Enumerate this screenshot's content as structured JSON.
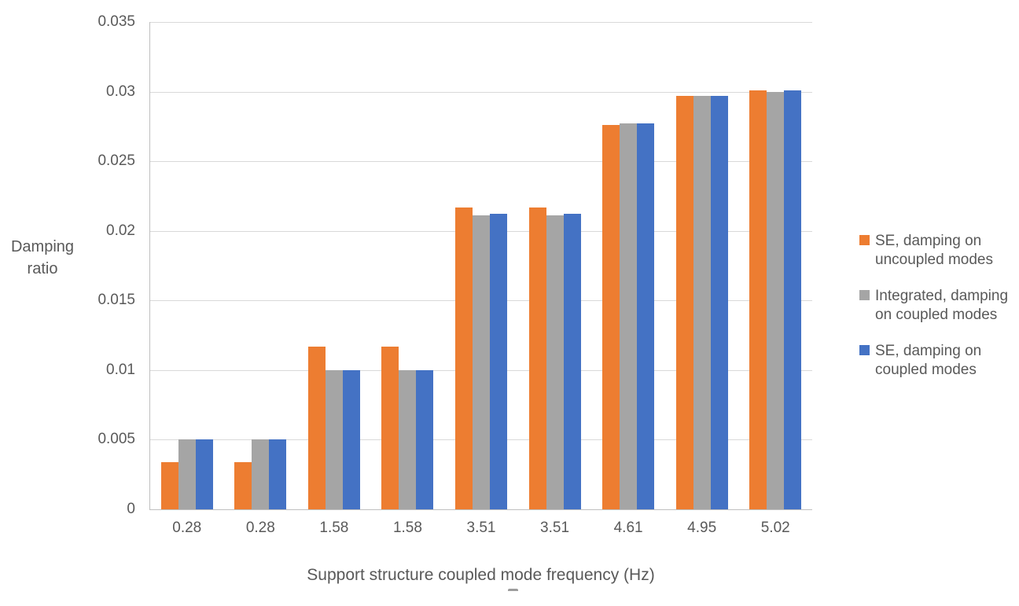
{
  "chart_data": {
    "type": "bar",
    "title": "",
    "xlabel": "Support structure coupled mode frequency (Hz)",
    "ylabel": "Damping ratio",
    "ylabel_lines": [
      "Damping",
      "ratio"
    ],
    "categories": [
      "0.28",
      "0.28",
      "1.58",
      "1.58",
      "3.51",
      "3.51",
      "4.61",
      "4.95",
      "5.02"
    ],
    "series": [
      {
        "name": "SE, damping on uncoupled modes",
        "name_lines": [
          "SE, damping on",
          "uncoupled modes"
        ],
        "color": "#ED7D31",
        "values": [
          0.0034,
          0.0034,
          0.0117,
          0.0117,
          0.0217,
          0.0217,
          0.0276,
          0.0297,
          0.0301
        ]
      },
      {
        "name": "Integrated, damping on coupled modes",
        "name_lines": [
          "Integrated, damping",
          "on coupled modes"
        ],
        "color": "#A5A5A5",
        "values": [
          0.005,
          0.005,
          0.01,
          0.01,
          0.0211,
          0.0211,
          0.0277,
          0.0297,
          0.03
        ]
      },
      {
        "name": "SE, damping on coupled modes",
        "name_lines": [
          "SE, damping on",
          "coupled modes"
        ],
        "color": "#4472C4",
        "values": [
          0.005,
          0.005,
          0.01,
          0.01,
          0.0212,
          0.0212,
          0.0277,
          0.0297,
          0.0301
        ]
      }
    ],
    "y_axis": {
      "min": 0,
      "max": 0.035,
      "tick_interval": 0.005,
      "tick_labels": [
        "0",
        "0.005",
        "0.01",
        "0.015",
        "0.02",
        "0.025",
        "0.03",
        "0.035"
      ]
    },
    "legend_position": "right",
    "grid": true
  },
  "colors": {
    "gridline": "#D9D9D9",
    "axis_line": "#BFBFBF",
    "text": "#595959",
    "orange_series": "#ED7D31",
    "gray_series": "#A5A5A5",
    "blue_series": "#4472C4"
  }
}
